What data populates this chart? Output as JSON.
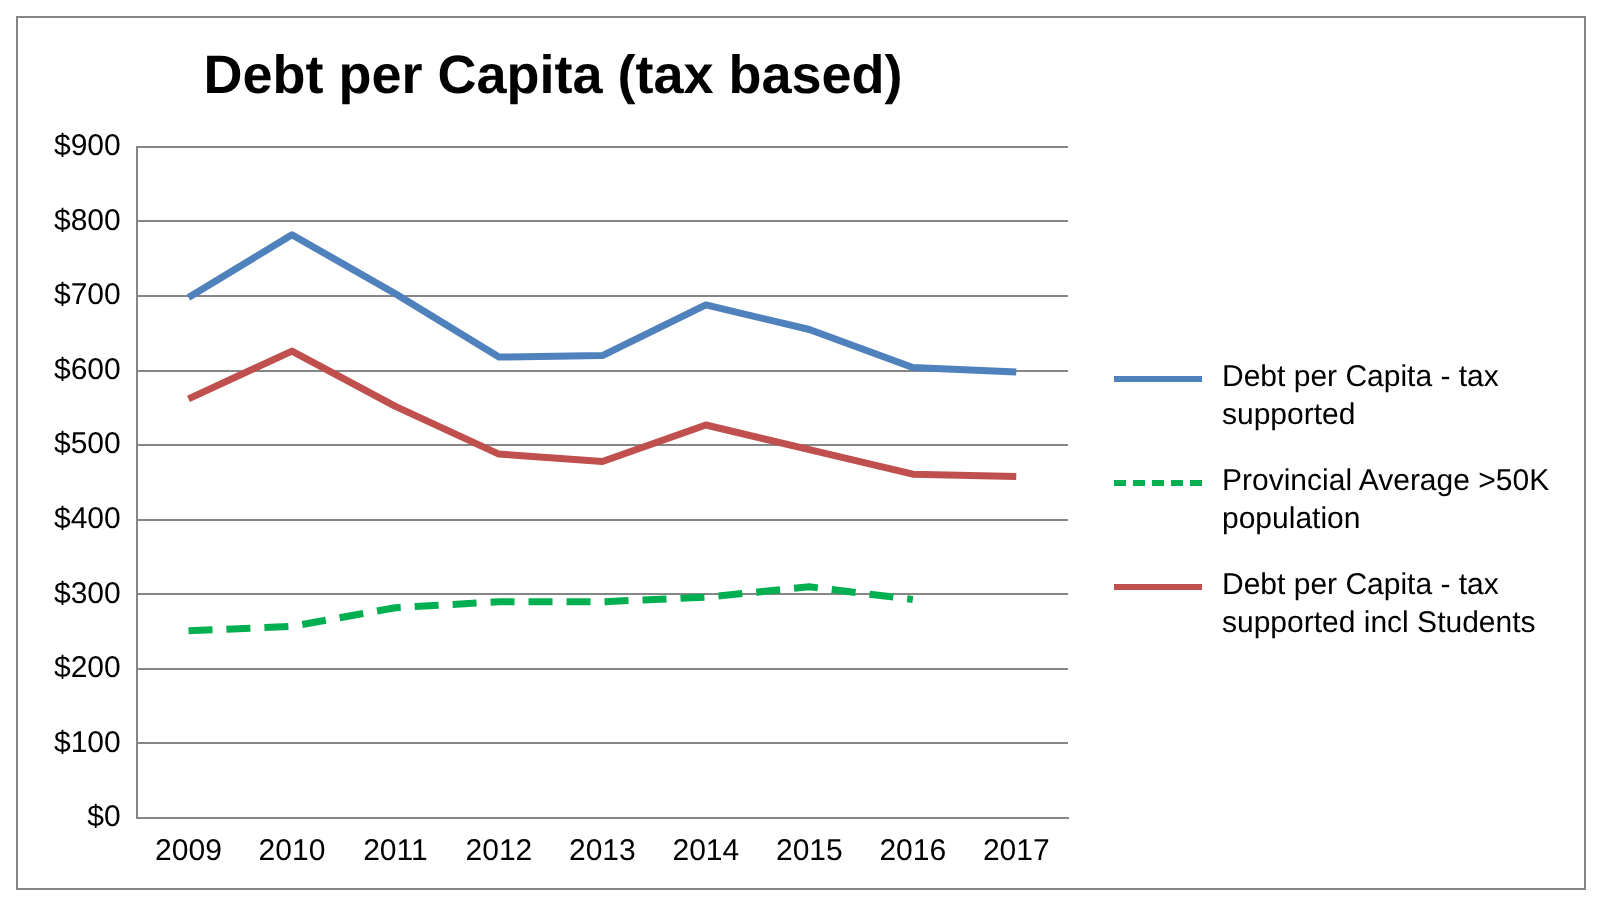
{
  "chart_data": {
    "type": "line",
    "title": "Debt per Capita (tax based)",
    "categories": [
      "2009",
      "2010",
      "2011",
      "2012",
      "2013",
      "2014",
      "2015",
      "2016",
      "2017"
    ],
    "series": [
      {
        "name": "Debt per Capita - tax supported",
        "color": "#4f81bd",
        "values": [
          698,
          782,
          703,
          618,
          620,
          688,
          655,
          604,
          598
        ]
      },
      {
        "name": "Provincial Average >50K population",
        "color": "#00b050",
        "line_style": "dashed",
        "values": [
          251,
          257,
          282,
          290,
          290,
          296,
          310,
          293,
          null
        ]
      },
      {
        "name": "Debt per Capita - tax supported incl Students",
        "color": "#c0504d",
        "values": [
          562,
          626,
          552,
          488,
          478,
          527,
          494,
          461,
          458
        ]
      }
    ],
    "ylim": [
      0,
      900
    ],
    "yticks": [
      {
        "value": 0,
        "label": "$0"
      },
      {
        "value": 100,
        "label": "$100"
      },
      {
        "value": 200,
        "label": "$200"
      },
      {
        "value": 300,
        "label": "$300"
      },
      {
        "value": 400,
        "label": "$400"
      },
      {
        "value": 500,
        "label": "$500"
      },
      {
        "value": 600,
        "label": "$600"
      },
      {
        "value": 700,
        "label": "$700"
      },
      {
        "value": 800,
        "label": "$800"
      },
      {
        "value": 900,
        "label": "$900"
      }
    ],
    "grid": "y",
    "legend": "right",
    "marker": "none"
  }
}
